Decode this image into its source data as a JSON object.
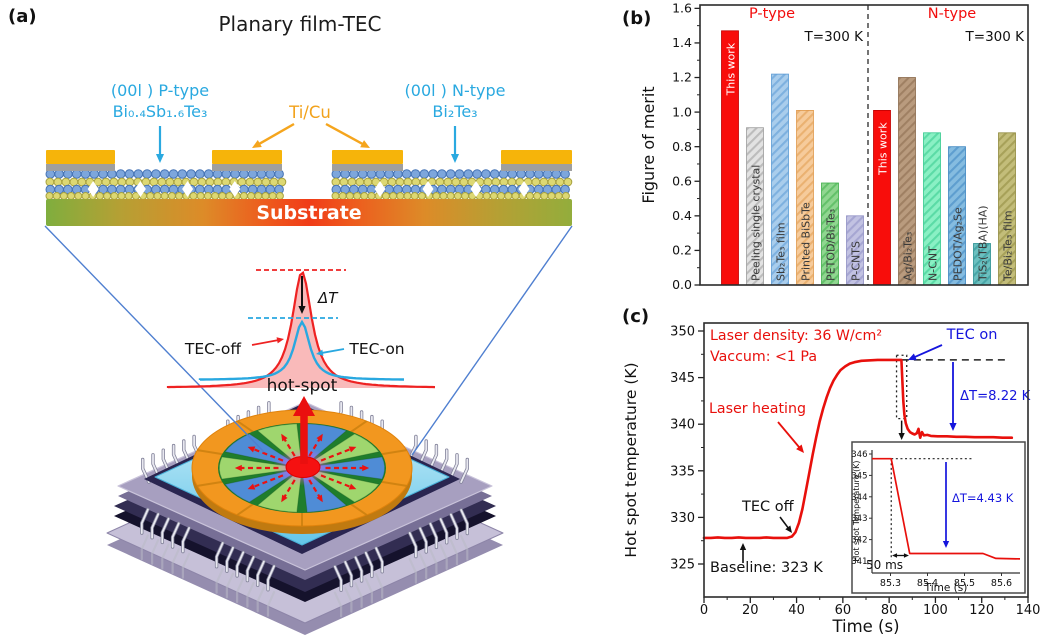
{
  "figure": {
    "a": {
      "tag": "(a)",
      "title": "Planary film-TEC",
      "film_p_line1": "(00l ) P-type",
      "film_p_line2": "Bi₀.₄Sb₁.₆Te₃",
      "electrode_label": "Ti/Cu",
      "film_n_line1": "(00l ) N-type",
      "film_n_line2": "Bi₂Te₃",
      "substrate_label": "Substrate",
      "delta_t_label": "ΔT",
      "tec_off_label": "TEC-off",
      "tec_on_label": "TEC-on",
      "hot_spot_label": "hot-spot",
      "colors": {
        "film_label_cyan": "#2aa9e0",
        "electrode_orange": "#f2a21b",
        "gold": "#f6b40a",
        "profile_red": "#ee2222",
        "profile_blue": "#29a8e0"
      }
    },
    "b": {
      "tag": "(b)"
    },
    "c": {
      "tag": "(c)"
    }
  },
  "chart_data": [
    {
      "panel": "b",
      "type": "bar",
      "title": "",
      "xlabel": "",
      "ylabel": "Figure of merit",
      "ylim": [
        0,
        1.6
      ],
      "ytick_step": 0.2,
      "ytick_minor_step": 0.1,
      "grid": false,
      "divider_style": "vertical dashed line between groups",
      "groups": [
        {
          "name": "P-type",
          "note": "T=300 K",
          "bars": [
            {
              "label": "This work",
              "value": 1.47,
              "fill": "#f80d0b",
              "hatch": null,
              "label_color": "#ffffff",
              "label_at_top": true
            },
            {
              "label": "Peeling single crystal",
              "value": 0.91,
              "fill": "#e2e2e2",
              "hatch": "#9d9d9d",
              "label_color": "#3a3a3a",
              "label_at_top": false
            },
            {
              "label": "Sb₂Te₃ film",
              "value": 1.22,
              "fill": "#a9cdec",
              "hatch": "#5b9bd5",
              "label_color": "#3a3a3a",
              "label_at_top": false
            },
            {
              "label": "Printed BiSbTe",
              "value": 1.01,
              "fill": "#f6cb9b",
              "hatch": "#e09a4e",
              "label_color": "#3a3a3a",
              "label_at_top": false
            },
            {
              "label": "PETOD/Bi₂Te₃",
              "value": 0.59,
              "fill": "#90d690",
              "hatch": "#3fae4a",
              "label_color": "#3a3a3a",
              "label_at_top": false
            },
            {
              "label": "P-CNTS",
              "value": 0.4,
              "fill": "#c2c2e2",
              "hatch": "#8f8fc4",
              "label_color": "#3a3a3a",
              "label_at_top": false
            }
          ]
        },
        {
          "name": "N-type",
          "note": "T=300 K",
          "bars": [
            {
              "label": "This work",
              "value": 1.01,
              "fill": "#f80d0b",
              "hatch": null,
              "label_color": "#ffffff",
              "label_at_top": true
            },
            {
              "label": "Ag/Bi₂Te₃",
              "value": 1.2,
              "fill": "#b99b7e",
              "hatch": "#8a6a4c",
              "label_color": "#3a3a3a",
              "label_at_top": false
            },
            {
              "label": "N-CNT",
              "value": 0.88,
              "fill": "#8af0c4",
              "hatch": "#35c98e",
              "label_color": "#3a3a3a",
              "label_at_top": false
            },
            {
              "label": "PEDOT/Ag₂Se",
              "value": 0.8,
              "fill": "#85bce0",
              "hatch": "#3d85c0",
              "label_color": "#3a3a3a",
              "label_at_top": false
            },
            {
              "label": "TiS₂(TBA)(HA)",
              "value": 0.24,
              "fill": "#6cc0c0",
              "hatch": "#2a8f92",
              "label_color": "#3a3a3a",
              "label_at_top": false
            },
            {
              "label": "Te/Bi₂Te₃ film",
              "value": 0.88,
              "fill": "#c3bd7a",
              "hatch": "#908a3e",
              "label_color": "#3a3a3a",
              "label_at_top": false
            }
          ]
        }
      ],
      "header_color": "#f20d0d",
      "note_color": "#111111"
    },
    {
      "panel": "c",
      "type": "line",
      "xlabel": "Time (s)",
      "ylabel": "Hot spot temperature (K)",
      "xlim": [
        0,
        140
      ],
      "xticks": [
        0,
        20,
        40,
        60,
        80,
        100,
        120,
        140
      ],
      "yticks": [
        325,
        330,
        335,
        340,
        345,
        350
      ],
      "series": [
        {
          "name": "hot spot temperature",
          "color": "#e8100c",
          "points": [
            [
              0,
              327.8
            ],
            [
              3,
              327.8
            ],
            [
              6,
              327.85
            ],
            [
              9,
              327.8
            ],
            [
              12,
              327.8
            ],
            [
              15,
              327.85
            ],
            [
              18,
              327.8
            ],
            [
              21,
              327.8
            ],
            [
              24,
              327.8
            ],
            [
              27,
              327.85
            ],
            [
              30,
              327.8
            ],
            [
              33,
              327.8
            ],
            [
              36,
              327.8
            ],
            [
              38,
              327.95
            ],
            [
              39.5,
              328.4
            ],
            [
              41,
              329.4
            ],
            [
              42.5,
              330.9
            ],
            [
              44,
              332.8
            ],
            [
              45.5,
              334.8
            ],
            [
              47,
              336.8
            ],
            [
              48.5,
              338.6
            ],
            [
              50,
              340.3
            ],
            [
              51.5,
              341.7
            ],
            [
              53,
              342.9
            ],
            [
              54.5,
              343.9
            ],
            [
              56,
              344.7
            ],
            [
              57.5,
              345.3
            ],
            [
              59,
              345.8
            ],
            [
              61,
              346.2
            ],
            [
              63,
              346.5
            ],
            [
              65,
              346.65
            ],
            [
              68,
              346.8
            ],
            [
              71,
              346.85
            ],
            [
              75,
              346.9
            ],
            [
              79,
              346.9
            ],
            [
              83,
              346.9
            ],
            [
              85.3,
              346.9
            ],
            [
              85.7,
              344.8
            ],
            [
              86.1,
              342.5
            ],
            [
              86.6,
              341.0
            ],
            [
              87.2,
              340.1
            ],
            [
              88,
              339.5
            ],
            [
              89,
              339.15
            ],
            [
              90,
              339.0
            ],
            [
              91,
              338.9
            ],
            [
              92,
              339.05
            ],
            [
              92.7,
              339.5
            ],
            [
              93.4,
              338.55
            ],
            [
              94.2,
              339.15
            ],
            [
              95,
              338.8
            ],
            [
              96.5,
              338.85
            ],
            [
              98,
              338.75
            ],
            [
              101,
              338.7
            ],
            [
              105,
              338.7
            ],
            [
              109,
              338.65
            ],
            [
              113,
              338.65
            ],
            [
              117,
              338.6
            ],
            [
              121,
              338.6
            ],
            [
              125,
              338.6
            ],
            [
              129,
              338.55
            ],
            [
              133,
              338.55
            ]
          ]
        }
      ],
      "reference_dash_level": 346.9,
      "reference_dash_t": [
        85.5,
        130
      ],
      "zoom_rect_t": [
        83.2,
        87.6
      ],
      "zoom_rect_T": [
        340.6,
        347.4
      ],
      "annotations": {
        "laser_density": "Laser density: 36 W/cm²",
        "vacuum": "Vaccum: <1 Pa",
        "tec_on": "TEC on",
        "delta_t": "ΔT=8.22 K",
        "laser_heating": "Laser heating",
        "tec_off": "TEC off",
        "baseline": "Baseline: 323 K"
      },
      "colors": {
        "red": "#e8100c",
        "blue": "#1515dd",
        "black": "#111111"
      }
    },
    {
      "panel": "c-inset",
      "type": "line",
      "xlabel": "Time (s)",
      "ylabel": "Hot spot Temperature (K)",
      "xticks": [
        85.3,
        85.4,
        85.5,
        85.6
      ],
      "yticks": [
        341,
        342,
        343,
        344,
        345,
        346
      ],
      "series": [
        {
          "name": "hot spot temperature (zoom)",
          "color": "#e8100c",
          "points": [
            [
              85.25,
              345.78
            ],
            [
              85.302,
              345.78
            ],
            [
              85.352,
              341.35
            ],
            [
              85.55,
              341.35
            ],
            [
              85.585,
              341.12
            ],
            [
              85.65,
              341.1
            ]
          ]
        }
      ],
      "annotations": {
        "delta_t": "ΔT=4.43 K",
        "drop_duration": "50 ms"
      }
    }
  ]
}
